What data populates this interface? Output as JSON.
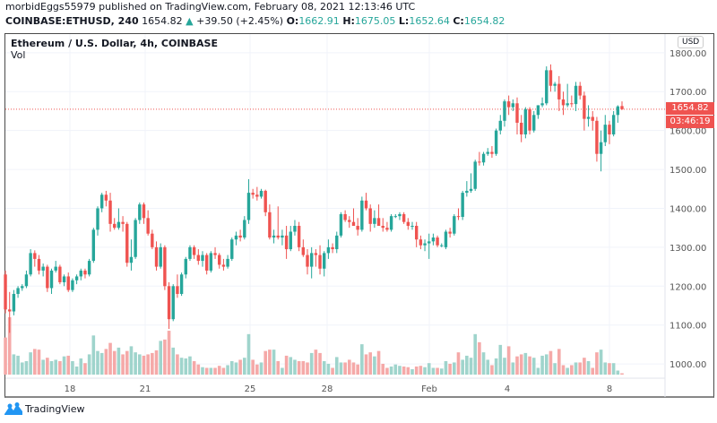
{
  "header": {
    "published_line": "morbidEggs55979 published on TradingView.com, February 08, 2021 12:13:46 UTC",
    "symbol": "COINBASE:ETHUSD, 240",
    "last": "1654.82",
    "change": "+39.50 (+2.45%)",
    "o_label": "O:",
    "o": "1662.91",
    "h_label": "H:",
    "h": "1675.05",
    "l_label": "L:",
    "l": "1652.64",
    "c_label": "C:",
    "c": "1654.82"
  },
  "legend": {
    "title": "Ethereum / U.S. Dollar, 4h, COINBASE",
    "vol": "Vol"
  },
  "currency": "USD",
  "price_label": "1654.82",
  "countdown": "03:46:19",
  "brand": "TradingView",
  "colors": {
    "up": "#26a69a",
    "down": "#ef5350",
    "vol_up": "#9fd4cc",
    "vol_down": "#f5a9a8",
    "grid": "#f0f3fa"
  },
  "chart_data": {
    "type": "candlestick",
    "ylim": [
      968,
      1848
    ],
    "y_ticks": [
      "1800.00",
      "1700.00",
      "1600.00",
      "1500.00",
      "1400.00",
      "1300.00",
      "1200.00",
      "1100.00",
      "1000.00"
    ],
    "x_ticks": [
      "18",
      "21",
      "25",
      "28",
      "Feb",
      "4",
      "8"
    ],
    "grid": true,
    "last_price_line": 1654.82,
    "candles_ohlcv": [
      [
        1230,
        1240,
        1130,
        1140,
        55
      ],
      [
        1140,
        1185,
        1080,
        1135,
        85
      ],
      [
        1135,
        1190,
        1125,
        1180,
        30
      ],
      [
        1180,
        1200,
        1170,
        1195,
        28
      ],
      [
        1195,
        1205,
        1188,
        1200,
        18
      ],
      [
        1200,
        1240,
        1195,
        1230,
        20
      ],
      [
        1230,
        1295,
        1225,
        1285,
        33
      ],
      [
        1285,
        1292,
        1250,
        1270,
        38
      ],
      [
        1270,
        1280,
        1230,
        1240,
        37
      ],
      [
        1240,
        1258,
        1225,
        1250,
        22
      ],
      [
        1250,
        1255,
        1185,
        1195,
        25
      ],
      [
        1195,
        1245,
        1180,
        1240,
        20
      ],
      [
        1240,
        1265,
        1235,
        1250,
        22
      ],
      [
        1250,
        1255,
        1205,
        1210,
        20
      ],
      [
        1210,
        1230,
        1200,
        1225,
        27
      ],
      [
        1225,
        1235,
        1185,
        1190,
        28
      ],
      [
        1190,
        1220,
        1185,
        1215,
        20
      ],
      [
        1215,
        1230,
        1205,
        1225,
        12
      ],
      [
        1225,
        1245,
        1215,
        1240,
        24
      ],
      [
        1240,
        1245,
        1220,
        1230,
        17
      ],
      [
        1230,
        1270,
        1225,
        1265,
        30
      ],
      [
        1265,
        1350,
        1260,
        1345,
        58
      ],
      [
        1345,
        1405,
        1330,
        1400,
        35
      ],
      [
        1400,
        1440,
        1390,
        1435,
        32
      ],
      [
        1435,
        1445,
        1405,
        1420,
        38
      ],
      [
        1420,
        1440,
        1340,
        1360,
        47
      ],
      [
        1360,
        1375,
        1345,
        1350,
        35
      ],
      [
        1350,
        1400,
        1345,
        1365,
        40
      ],
      [
        1365,
        1380,
        1340,
        1360,
        30
      ],
      [
        1360,
        1365,
        1250,
        1260,
        35
      ],
      [
        1260,
        1320,
        1240,
        1275,
        42
      ],
      [
        1275,
        1375,
        1270,
        1370,
        33
      ],
      [
        1370,
        1415,
        1360,
        1410,
        30
      ],
      [
        1410,
        1415,
        1360,
        1375,
        28
      ],
      [
        1375,
        1395,
        1330,
        1335,
        30
      ],
      [
        1335,
        1345,
        1295,
        1300,
        32
      ],
      [
        1300,
        1315,
        1240,
        1250,
        36
      ],
      [
        1250,
        1310,
        1245,
        1300,
        50
      ],
      [
        1300,
        1305,
        1190,
        1200,
        52
      ],
      [
        1200,
        1210,
        1090,
        1115,
        65
      ],
      [
        1115,
        1205,
        1110,
        1200,
        40
      ],
      [
        1200,
        1230,
        1170,
        1180,
        30
      ],
      [
        1180,
        1235,
        1175,
        1230,
        25
      ],
      [
        1230,
        1275,
        1220,
        1270,
        24
      ],
      [
        1270,
        1305,
        1265,
        1300,
        27
      ],
      [
        1300,
        1305,
        1270,
        1280,
        20
      ],
      [
        1280,
        1295,
        1255,
        1265,
        15
      ],
      [
        1265,
        1290,
        1250,
        1280,
        11
      ],
      [
        1280,
        1285,
        1230,
        1240,
        10
      ],
      [
        1240,
        1290,
        1235,
        1285,
        10
      ],
      [
        1285,
        1300,
        1270,
        1280,
        10
      ],
      [
        1280,
        1285,
        1245,
        1255,
        13
      ],
      [
        1255,
        1270,
        1240,
        1250,
        10
      ],
      [
        1250,
        1280,
        1245,
        1270,
        14
      ],
      [
        1270,
        1325,
        1265,
        1320,
        20
      ],
      [
        1320,
        1340,
        1305,
        1330,
        18
      ],
      [
        1330,
        1345,
        1315,
        1325,
        22
      ],
      [
        1325,
        1380,
        1320,
        1370,
        25
      ],
      [
        1370,
        1475,
        1360,
        1440,
        60
      ],
      [
        1440,
        1450,
        1425,
        1435,
        22
      ],
      [
        1435,
        1455,
        1420,
        1430,
        15
      ],
      [
        1430,
        1450,
        1425,
        1445,
        18
      ],
      [
        1445,
        1448,
        1380,
        1390,
        35
      ],
      [
        1390,
        1410,
        1320,
        1325,
        37
      ],
      [
        1325,
        1345,
        1310,
        1330,
        37
      ],
      [
        1330,
        1405,
        1320,
        1325,
        20
      ],
      [
        1325,
        1345,
        1305,
        1330,
        10
      ],
      [
        1330,
        1355,
        1270,
        1295,
        28
      ],
      [
        1295,
        1355,
        1290,
        1340,
        26
      ],
      [
        1340,
        1370,
        1330,
        1355,
        22
      ],
      [
        1355,
        1365,
        1290,
        1300,
        20
      ],
      [
        1300,
        1320,
        1275,
        1280,
        20
      ],
      [
        1280,
        1295,
        1230,
        1250,
        18
      ],
      [
        1250,
        1300,
        1220,
        1285,
        32
      ],
      [
        1285,
        1295,
        1250,
        1280,
        37
      ],
      [
        1280,
        1305,
        1230,
        1245,
        32
      ],
      [
        1245,
        1290,
        1225,
        1285,
        20
      ],
      [
        1285,
        1320,
        1270,
        1300,
        16
      ],
      [
        1300,
        1310,
        1285,
        1295,
        10
      ],
      [
        1295,
        1340,
        1285,
        1330,
        26
      ],
      [
        1330,
        1390,
        1325,
        1385,
        18
      ],
      [
        1385,
        1395,
        1365,
        1370,
        18
      ],
      [
        1370,
        1380,
        1350,
        1365,
        22
      ],
      [
        1365,
        1400,
        1355,
        1355,
        18
      ],
      [
        1355,
        1375,
        1330,
        1345,
        15
      ],
      [
        1345,
        1430,
        1340,
        1420,
        45
      ],
      [
        1420,
        1440,
        1395,
        1400,
        30
      ],
      [
        1400,
        1410,
        1340,
        1360,
        33
      ],
      [
        1360,
        1395,
        1350,
        1375,
        27
      ],
      [
        1375,
        1410,
        1355,
        1355,
        35
      ],
      [
        1355,
        1375,
        1340,
        1350,
        16
      ],
      [
        1350,
        1365,
        1340,
        1345,
        10
      ],
      [
        1345,
        1385,
        1340,
        1380,
        12
      ],
      [
        1380,
        1385,
        1375,
        1380,
        15
      ],
      [
        1380,
        1390,
        1370,
        1385,
        13
      ],
      [
        1385,
        1390,
        1360,
        1365,
        12
      ],
      [
        1365,
        1375,
        1345,
        1355,
        11
      ],
      [
        1355,
        1365,
        1345,
        1355,
        8
      ],
      [
        1355,
        1365,
        1300,
        1320,
        12
      ],
      [
        1320,
        1330,
        1295,
        1305,
        13
      ],
      [
        1305,
        1320,
        1290,
        1310,
        11
      ],
      [
        1310,
        1335,
        1270,
        1315,
        17
      ],
      [
        1315,
        1335,
        1305,
        1325,
        10
      ],
      [
        1325,
        1330,
        1300,
        1305,
        10
      ],
      [
        1305,
        1310,
        1300,
        1305,
        9
      ],
      [
        1300,
        1345,
        1295,
        1340,
        20
      ],
      [
        1340,
        1350,
        1325,
        1335,
        16
      ],
      [
        1335,
        1385,
        1330,
        1380,
        18
      ],
      [
        1380,
        1400,
        1370,
        1378,
        33
      ],
      [
        1378,
        1445,
        1370,
        1440,
        22
      ],
      [
        1440,
        1470,
        1430,
        1445,
        28
      ],
      [
        1445,
        1490,
        1440,
        1450,
        25
      ],
      [
        1450,
        1525,
        1445,
        1520,
        60
      ],
      [
        1520,
        1545,
        1510,
        1518,
        48
      ],
      [
        1518,
        1545,
        1510,
        1540,
        33
      ],
      [
        1540,
        1555,
        1535,
        1545,
        22
      ],
      [
        1545,
        1560,
        1530,
        1540,
        14
      ],
      [
        1540,
        1605,
        1535,
        1600,
        24
      ],
      [
        1600,
        1640,
        1590,
        1625,
        44
      ],
      [
        1625,
        1680,
        1610,
        1675,
        25
      ],
      [
        1675,
        1690,
        1640,
        1660,
        42
      ],
      [
        1660,
        1680,
        1650,
        1670,
        18
      ],
      [
        1670,
        1685,
        1590,
        1620,
        27
      ],
      [
        1620,
        1640,
        1570,
        1590,
        30
      ],
      [
        1590,
        1660,
        1580,
        1655,
        32
      ],
      [
        1655,
        1660,
        1590,
        1600,
        27
      ],
      [
        1600,
        1650,
        1595,
        1640,
        25
      ],
      [
        1640,
        1665,
        1630,
        1665,
        10
      ],
      [
        1665,
        1685,
        1660,
        1670,
        28
      ],
      [
        1670,
        1765,
        1665,
        1755,
        30
      ],
      [
        1755,
        1770,
        1700,
        1715,
        35
      ],
      [
        1715,
        1725,
        1700,
        1720,
        17
      ],
      [
        1720,
        1740,
        1650,
        1680,
        38
      ],
      [
        1680,
        1700,
        1640,
        1665,
        14
      ],
      [
        1665,
        1720,
        1660,
        1670,
        10
      ],
      [
        1670,
        1690,
        1660,
        1668,
        14
      ],
      [
        1668,
        1725,
        1650,
        1715,
        18
      ],
      [
        1715,
        1725,
        1680,
        1690,
        18
      ],
      [
        1690,
        1700,
        1600,
        1630,
        25
      ],
      [
        1630,
        1665,
        1610,
        1635,
        20
      ],
      [
        1635,
        1650,
        1600,
        1625,
        10
      ],
      [
        1625,
        1635,
        1520,
        1540,
        33
      ],
      [
        1540,
        1600,
        1495,
        1570,
        37
      ],
      [
        1570,
        1640,
        1560,
        1615,
        18
      ],
      [
        1615,
        1625,
        1565,
        1590,
        17
      ],
      [
        1590,
        1650,
        1585,
        1640,
        17
      ],
      [
        1640,
        1665,
        1620,
        1662,
        6
      ],
      [
        1662.91,
        1675.05,
        1652.64,
        1654.82,
        2
      ]
    ]
  }
}
